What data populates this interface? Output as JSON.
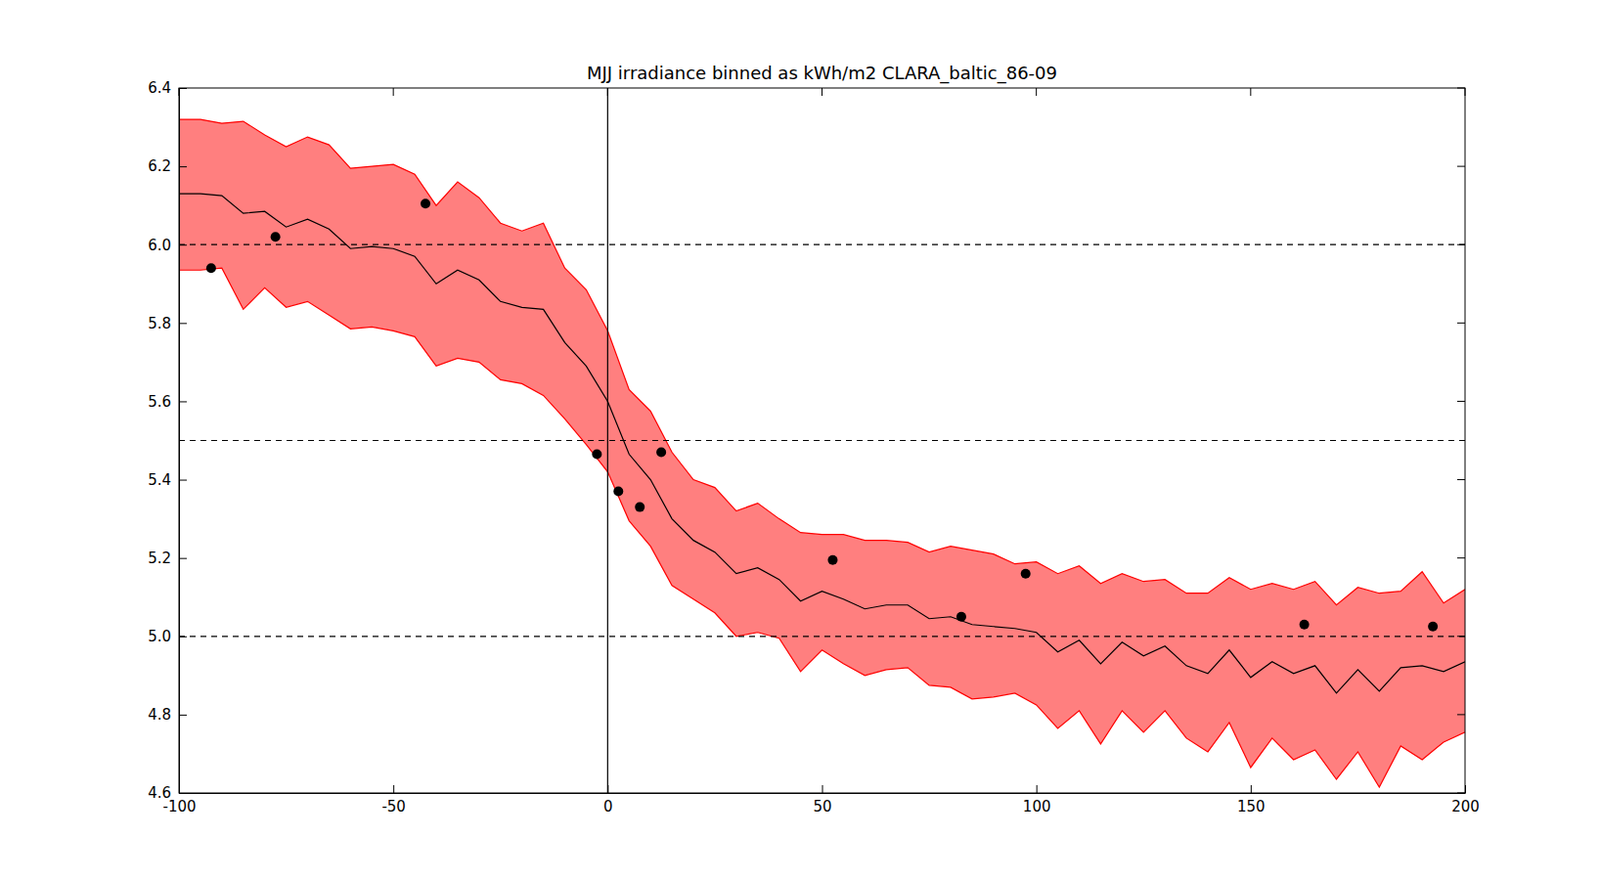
{
  "chart_data": {
    "type": "line",
    "title": "MJJ irradiance binned as kWh/m2 CLARA_baltic_86-09",
    "x": [
      -100,
      -95,
      -90,
      -85,
      -80,
      -75,
      -70,
      -65,
      -60,
      -55,
      -50,
      -45,
      -40,
      -35,
      -30,
      -25,
      -20,
      -15,
      -10,
      -5,
      0,
      5,
      10,
      15,
      20,
      25,
      30,
      35,
      40,
      45,
      50,
      55,
      60,
      65,
      70,
      75,
      80,
      85,
      90,
      95,
      100,
      105,
      110,
      115,
      120,
      125,
      130,
      135,
      140,
      145,
      150,
      155,
      160,
      165,
      170,
      175,
      180,
      185,
      190,
      195,
      200
    ],
    "series": [
      {
        "type": "band",
        "color": "#ff0000",
        "upper": [
          6.32,
          6.32,
          6.31,
          6.315,
          6.28,
          6.25,
          6.275,
          6.255,
          6.195,
          6.2,
          6.205,
          6.18,
          6.1,
          6.16,
          6.12,
          6.055,
          6.035,
          6.055,
          5.94,
          5.885,
          5.78,
          5.63,
          5.575,
          5.47,
          5.4,
          5.38,
          5.32,
          5.34,
          5.3,
          5.265,
          5.26,
          5.26,
          5.245,
          5.245,
          5.24,
          5.215,
          5.23,
          5.22,
          5.21,
          5.185,
          5.19,
          5.16,
          5.18,
          5.135,
          5.16,
          5.14,
          5.145,
          5.11,
          5.11,
          5.15,
          5.12,
          5.135,
          5.12,
          5.14,
          5.08,
          5.125,
          5.11,
          5.115,
          5.165,
          5.085,
          5.12
        ],
        "lower": [
          5.935,
          5.935,
          5.94,
          5.835,
          5.89,
          5.84,
          5.855,
          5.82,
          5.785,
          5.79,
          5.78,
          5.765,
          5.69,
          5.71,
          5.7,
          5.655,
          5.645,
          5.615,
          5.555,
          5.49,
          5.42,
          5.295,
          5.23,
          5.13,
          5.095,
          5.06,
          5.0,
          5.01,
          4.995,
          4.91,
          4.965,
          4.93,
          4.9,
          4.915,
          4.92,
          4.875,
          4.87,
          4.84,
          4.845,
          4.855,
          4.825,
          4.765,
          4.81,
          4.725,
          4.81,
          4.755,
          4.81,
          4.74,
          4.705,
          4.78,
          4.665,
          4.74,
          4.685,
          4.71,
          4.635,
          4.705,
          4.615,
          4.72,
          4.685,
          4.73,
          4.755
        ]
      },
      {
        "type": "line",
        "color": "#000000",
        "values": [
          6.13,
          6.13,
          6.125,
          6.08,
          6.085,
          6.045,
          6.065,
          6.04,
          5.99,
          5.995,
          5.99,
          5.97,
          5.9,
          5.935,
          5.91,
          5.855,
          5.84,
          5.835,
          5.75,
          5.69,
          5.6,
          5.465,
          5.4,
          5.3,
          5.245,
          5.215,
          5.16,
          5.175,
          5.145,
          5.09,
          5.115,
          5.095,
          5.07,
          5.08,
          5.08,
          5.045,
          5.05,
          5.03,
          5.025,
          5.02,
          5.01,
          4.96,
          4.99,
          4.93,
          4.985,
          4.95,
          4.975,
          4.925,
          4.905,
          4.965,
          4.895,
          4.935,
          4.905,
          4.925,
          4.855,
          4.915,
          4.86,
          4.92,
          4.925,
          4.91,
          4.935
        ]
      },
      {
        "type": "scatter",
        "color": "#000000",
        "marker": "circle",
        "x": [
          -92.5,
          -77.5,
          -42.5,
          -2.5,
          2.5,
          7.5,
          12.5,
          52.5,
          82.5,
          97.5,
          162.5,
          192.5
        ],
        "values": [
          5.94,
          6.02,
          6.105,
          5.465,
          5.37,
          5.33,
          5.47,
          5.195,
          5.05,
          5.16,
          5.03,
          5.025
        ]
      }
    ],
    "hlines": [
      5.0,
      5.5,
      6.0
    ],
    "vlines": [
      0
    ],
    "xlim": [
      -100,
      200
    ],
    "xticks": [
      -100,
      -50,
      0,
      50,
      100,
      150,
      200
    ],
    "ylim": [
      4.6,
      6.4
    ],
    "yticks": [
      4.6,
      4.8,
      {
        "value": 5,
        "label": "5.0"
      },
      5.2,
      5.4,
      5.6,
      5.8,
      {
        "value": 6,
        "label": "6.0"
      },
      6.2,
      6.4
    ]
  }
}
